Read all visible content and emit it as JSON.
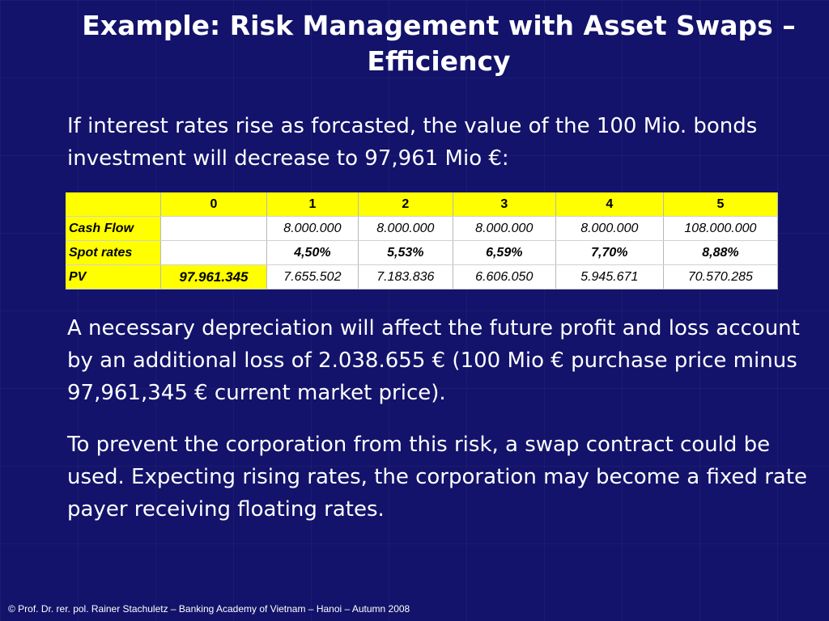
{
  "title": "Example: Risk Management with Asset Swaps – Efficiency",
  "intro": "If interest rates rise as forcasted, the value of the 100 Mio. bonds investment will decrease to 97,961 Mio €:",
  "table": {
    "header": [
      "",
      "",
      "0",
      "1",
      "2",
      "3",
      "4",
      "5"
    ],
    "rows": [
      {
        "label": "Cash Flow",
        "cells": [
          "",
          "",
          "8.000.000",
          "8.000.000",
          "8.000.000",
          "8.000.000",
          "108.000.000"
        ]
      },
      {
        "label": "Spot rates",
        "cells": [
          "",
          "",
          "4,50%",
          "5,53%",
          "6,59%",
          "7,70%",
          "8,88%"
        ]
      },
      {
        "label": "PV",
        "cells": [
          "97.961.345",
          "",
          "7.655.502",
          "7.183.836",
          "6.606.050",
          "5.945.671",
          "70.570.285"
        ]
      }
    ]
  },
  "paragraph2": "A necessary depreciation will affect the future profit and loss account by an additional loss of 2.038.655 € (100 Mio € purchase price minus 97,961,345 € current market price).",
  "paragraph3": "To prevent the corporation from this risk, a swap contract could be used. Expecting rising rates, the corporation may become a fixed rate payer receiving floating rates.",
  "footer": "©   Prof. Dr. rer. pol. Rainer Stachuletz – Banking Academy of Vietnam – Hanoi – Autumn 2008"
}
